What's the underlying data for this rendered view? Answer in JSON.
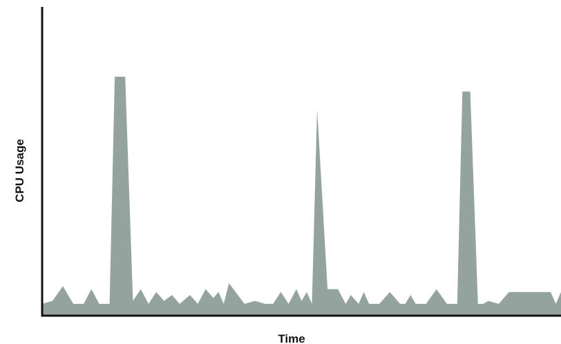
{
  "chart_data": {
    "type": "area",
    "title": "",
    "xlabel": "Time",
    "ylabel": "CPU Usage",
    "xlim": [
      0,
      100
    ],
    "ylim": [
      0,
      100
    ],
    "grid": false,
    "legend": "none",
    "colors": {
      "fill": "#95a39f",
      "axis": "#111111"
    },
    "series": [
      {
        "x": [
          0,
          2,
          4,
          6,
          8,
          9.5,
          11,
          13,
          14,
          16,
          17.5,
          19,
          20.5,
          22,
          23.5,
          25,
          26.5,
          28.5,
          30,
          31.5,
          33,
          34,
          35,
          36,
          39,
          41,
          43,
          44.5,
          46,
          47.5,
          49,
          50,
          51,
          52,
          53,
          55,
          57,
          58.5,
          59.5,
          61,
          62,
          63,
          65,
          67,
          69,
          70,
          71,
          72,
          74,
          76,
          78,
          80,
          81,
          82.5,
          84,
          85,
          86,
          88,
          90,
          94,
          95,
          96,
          97,
          98,
          99,
          100
        ],
        "y": [
          4,
          5,
          10,
          4,
          4,
          9,
          4,
          4,
          81,
          81,
          5,
          9,
          4,
          8,
          5,
          7,
          4,
          7,
          4,
          9,
          6,
          8,
          4,
          11,
          4,
          5,
          4,
          4,
          8,
          4,
          9,
          5,
          8,
          4,
          70,
          9,
          9,
          4,
          7,
          4,
          8,
          4,
          4,
          8,
          4,
          4,
          7,
          4,
          4,
          9,
          4,
          4,
          76,
          76,
          4,
          4,
          5,
          4,
          8,
          8,
          8,
          8,
          8,
          8,
          4,
          8
        ]
      }
    ]
  }
}
